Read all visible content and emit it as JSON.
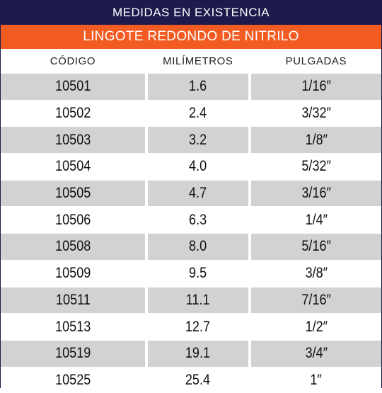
{
  "header": {
    "title": "MEDIDAS EN EXISTENCIA",
    "subtitle": "LINGOTE REDONDO DE NITRILO"
  },
  "columns": {
    "codigo": "CÓDIGO",
    "milimetros": "MILÍMETROS",
    "pulgadas": "PULGADAS"
  },
  "rows": [
    {
      "codigo": "10501",
      "mm": "1.6",
      "in": "1/16″"
    },
    {
      "codigo": "10502",
      "mm": "2.4",
      "in": "3/32″"
    },
    {
      "codigo": "10503",
      "mm": "3.2",
      "in": "1/8″"
    },
    {
      "codigo": "10504",
      "mm": "4.0",
      "in": "5/32″"
    },
    {
      "codigo": "10505",
      "mm": "4.7",
      "in": "3/16″"
    },
    {
      "codigo": "10506",
      "mm": "6.3",
      "in": "1/4″"
    },
    {
      "codigo": "10508",
      "mm": "8.0",
      "in": "5/16″"
    },
    {
      "codigo": "10509",
      "mm": "9.5",
      "in": "3/8″"
    },
    {
      "codigo": "10511",
      "mm": "11.1",
      "in": "7/16″"
    },
    {
      "codigo": "10513",
      "mm": "12.7",
      "in": "1/2″"
    },
    {
      "codigo": "10519",
      "mm": "19.1",
      "in": "3/4″"
    },
    {
      "codigo": "10525",
      "mm": "25.4",
      "in": "1″"
    }
  ],
  "colors": {
    "title_bg": "#1d1b4c",
    "subtitle_bg": "#f25c23",
    "shade": "#d2d2d2"
  }
}
